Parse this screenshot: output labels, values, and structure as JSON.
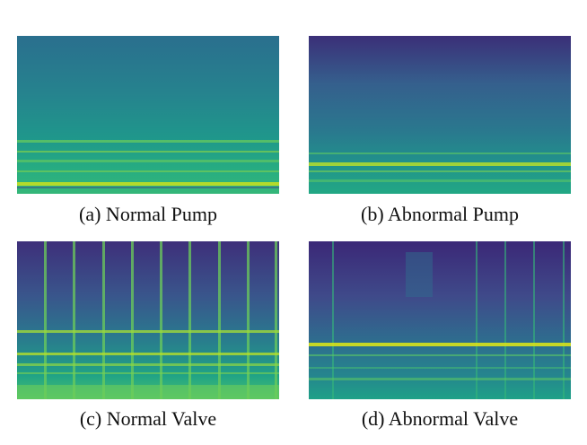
{
  "figure": {
    "panels": [
      {
        "id": "a",
        "caption": "(a) Normal Pump"
      },
      {
        "id": "b",
        "caption": "(b) Abnormal Pump"
      },
      {
        "id": "c",
        "caption": "(c) Normal Valve"
      },
      {
        "id": "d",
        "caption": "(d) Abnormal Valve"
      }
    ],
    "colormap": "viridis"
  }
}
